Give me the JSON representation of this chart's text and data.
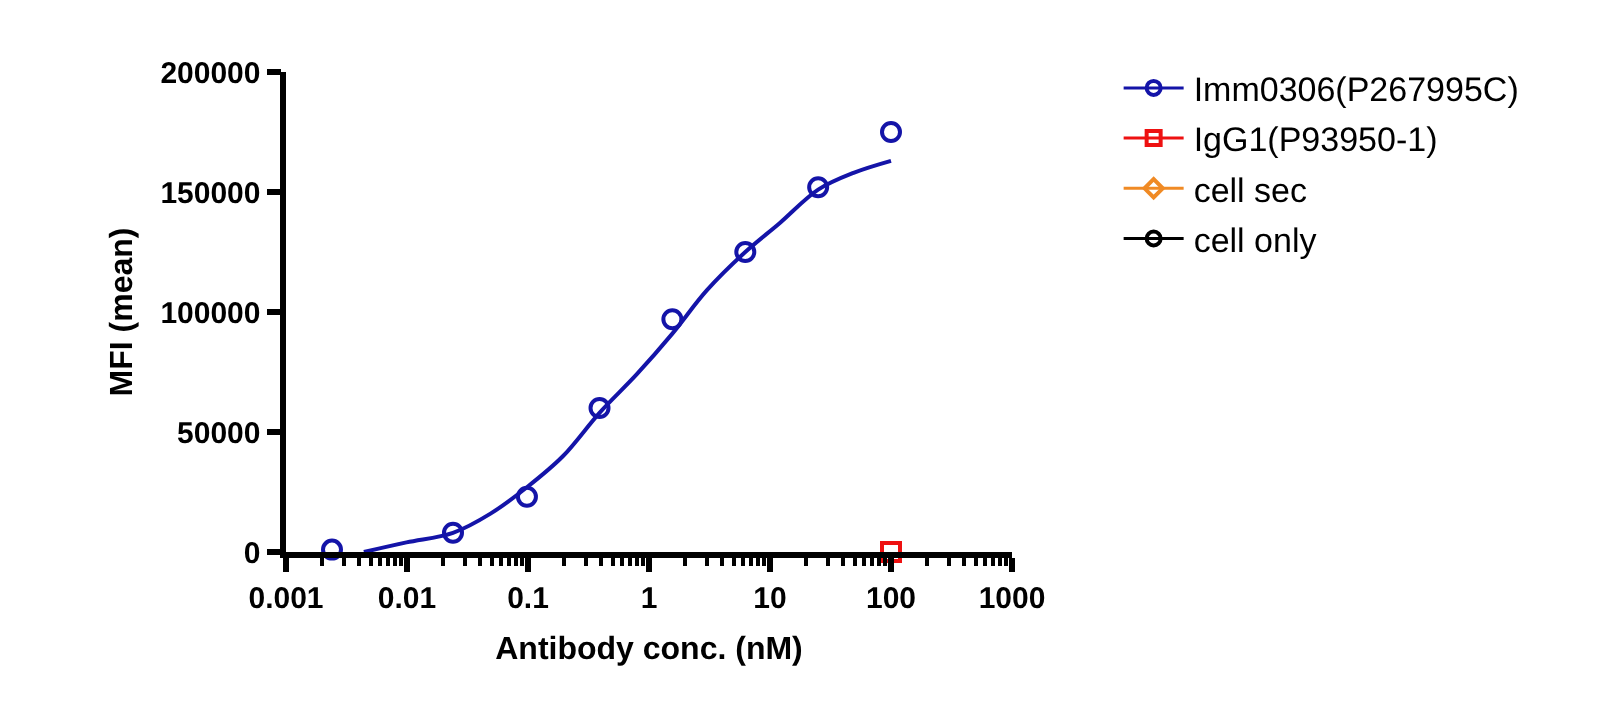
{
  "chart_data": {
    "type": "scatter",
    "xlabel": "Antibody conc. (nM)",
    "ylabel": "MFI (mean)",
    "log": "x",
    "xlim": [
      0.001,
      1000
    ],
    "xticks": [
      0.001,
      0.01,
      0.1,
      1,
      10,
      100,
      1000
    ],
    "ylim": [
      0,
      200000
    ],
    "yticks": [
      0,
      50000,
      100000,
      150000,
      200000
    ],
    "legend": "top right",
    "series": [
      {
        "name": "Imm0306(P267995C)",
        "color": "#1414a8",
        "marker": "circle",
        "x": [
          0.0024,
          0.024,
          0.098,
          0.39,
          1.56,
          6.25,
          25,
          100
        ],
        "values": [
          1000,
          8000,
          23000,
          60000,
          97000,
          125000,
          152000,
          175000
        ]
      },
      {
        "type": "line",
        "color": "#1414a8",
        "marker": "none",
        "x": [
          0.0044,
          0.0099,
          0.024,
          0.049,
          0.098,
          0.195,
          0.39,
          0.79,
          1.56,
          3,
          6.25,
          12,
          25,
          49,
          100
        ],
        "values": [
          0,
          4000,
          8000,
          16000,
          27000,
          40000,
          58000,
          74000,
          91000,
          109000,
          125000,
          137000,
          151000,
          158000,
          163000
        ]
      },
      {
        "name": "IgG1(P93950-1)",
        "color": "#ee1111",
        "marker": "square",
        "x": [
          100
        ],
        "values": [
          0
        ]
      },
      {
        "name": "cell sec",
        "color": "#f08a24",
        "marker": "diamond"
      },
      {
        "name": "cell only",
        "color": "#000000",
        "marker": "circle"
      }
    ]
  }
}
